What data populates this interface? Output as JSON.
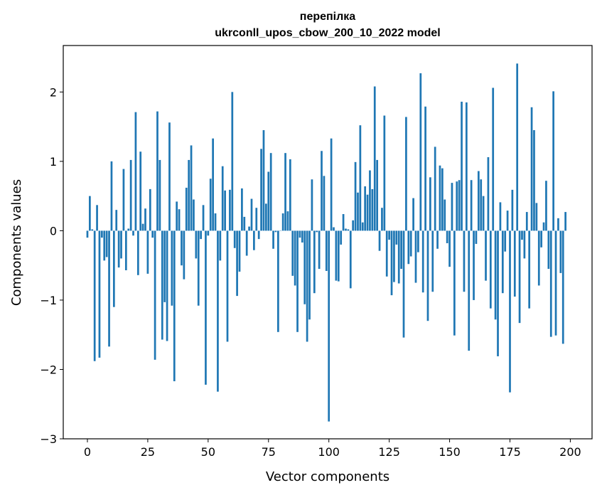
{
  "chart_data": {
    "type": "bar",
    "title": "перепілка",
    "subtitle": "ukrconll_upos_cbow_200_10_2022 model",
    "xlabel": "Vector components",
    "ylabel": "Components values",
    "xlim": [
      -10,
      209
    ],
    "ylim": [
      -3.0,
      2.67
    ],
    "xticks": [
      0,
      25,
      50,
      75,
      100,
      125,
      150,
      175,
      200
    ],
    "yticks": [
      -3,
      -2,
      -1,
      0,
      1,
      2
    ],
    "xtick_labels": [
      "0",
      "25",
      "50",
      "75",
      "100",
      "125",
      "150",
      "175",
      "200"
    ],
    "ytick_labels": [
      "−3",
      "−2",
      "−1",
      "0",
      "1",
      "2"
    ],
    "bar_color": "#1f77b4",
    "grid": false,
    "x_start": 0,
    "values": [
      -0.1,
      0.5,
      0.02,
      -1.88,
      0.37,
      -1.83,
      -0.1,
      -0.43,
      -0.38,
      -1.67,
      1.0,
      -1.1,
      0.3,
      -0.53,
      -0.4,
      0.89,
      -0.57,
      0.03,
      1.02,
      -0.07,
      1.71,
      -0.64,
      1.14,
      0.1,
      0.32,
      -0.62,
      0.6,
      -0.1,
      -1.86,
      1.72,
      1.02,
      -1.57,
      -1.03,
      -1.59,
      1.56,
      -1.08,
      -2.17,
      0.42,
      0.31,
      -0.5,
      -0.7,
      0.62,
      1.02,
      1.23,
      0.45,
      -0.4,
      -1.08,
      -0.12,
      0.37,
      -2.22,
      -0.07,
      0.75,
      1.33,
      0.25,
      -2.32,
      -0.43,
      0.93,
      0.58,
      -1.6,
      0.59,
      2.0,
      -0.25,
      -0.94,
      -0.59,
      0.61,
      0.2,
      -0.36,
      0.06,
      0.46,
      -0.28,
      0.33,
      -0.12,
      1.18,
      1.45,
      0.39,
      0.85,
      1.12,
      -0.26,
      -0.02,
      -1.46,
      0.0,
      0.25,
      1.12,
      0.28,
      1.03,
      -0.65,
      -0.79,
      -1.46,
      -0.1,
      -0.17,
      -1.06,
      -1.6,
      -1.28,
      0.74,
      -0.9,
      -0.02,
      -0.55,
      1.15,
      0.79,
      -0.58,
      -2.75,
      1.33,
      0.05,
      -0.72,
      -0.73,
      -0.2,
      0.24,
      0.03,
      0.02,
      -0.83,
      0.15,
      0.99,
      0.55,
      1.52,
      0.12,
      0.64,
      0.52,
      0.87,
      0.6,
      2.08,
      1.02,
      -0.29,
      0.33,
      1.66,
      -0.66,
      -0.13,
      -0.93,
      -0.74,
      -0.2,
      -0.76,
      -0.55,
      -1.54,
      1.64,
      -0.48,
      -0.37,
      0.47,
      -0.75,
      -0.31,
      2.27,
      -0.89,
      1.79,
      -1.3,
      0.77,
      -0.88,
      1.21,
      -0.26,
      0.94,
      0.9,
      0.45,
      -0.18,
      -0.52,
      0.69,
      -1.51,
      0.71,
      0.73,
      1.86,
      -0.88,
      1.85,
      -1.73,
      0.73,
      -1.0,
      -0.19,
      0.86,
      0.74,
      0.5,
      -0.72,
      1.06,
      -1.12,
      2.06,
      -1.28,
      -1.81,
      0.41,
      -0.9,
      -0.3,
      0.29,
      -2.33,
      0.59,
      -0.95,
      2.41,
      -1.33,
      -0.13,
      -0.4,
      0.27,
      -1.12,
      1.78,
      1.45,
      0.4,
      -0.79,
      -0.24,
      0.12,
      0.72,
      -0.55,
      -1.53,
      2.01,
      -1.51,
      0.18,
      -0.61,
      -1.63,
      0.27
    ]
  }
}
